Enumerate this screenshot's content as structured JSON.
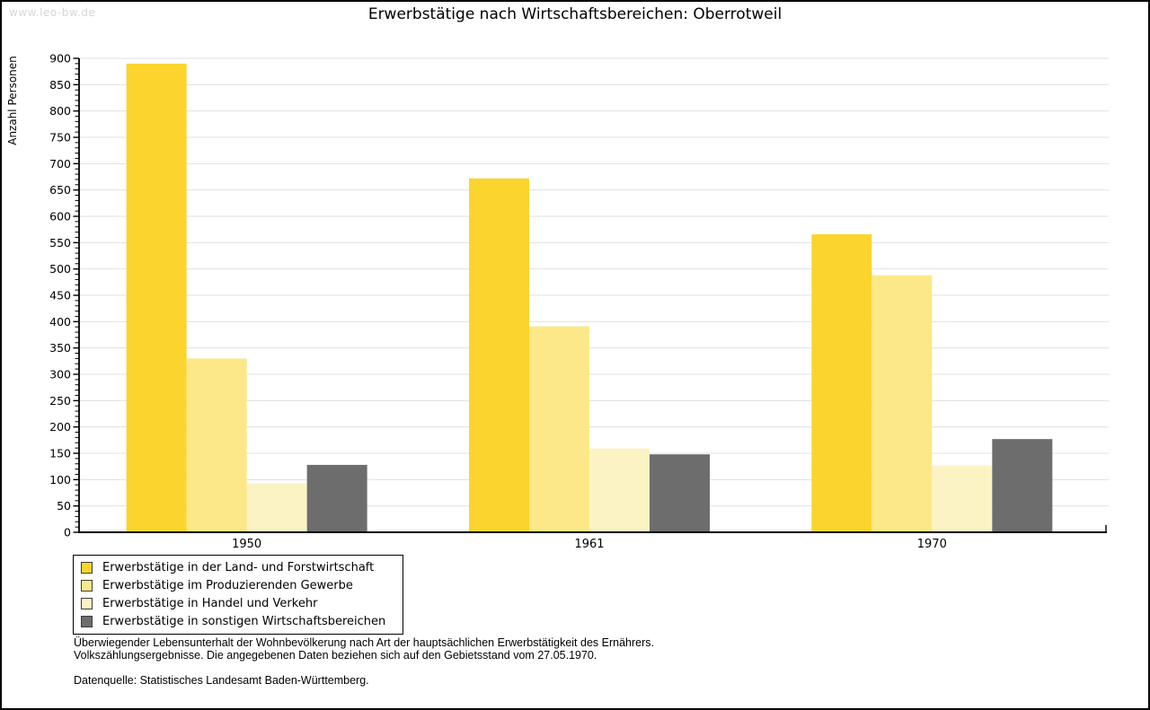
{
  "watermark": "www.leo-bw.de",
  "title": "Erwerbstätige nach Wirtschaftsbereichen: Oberrotweil",
  "chart_data": {
    "type": "bar",
    "title": "Erwerbstätige nach Wirtschaftsbereichen: Oberrotweil",
    "categories": [
      "1950",
      "1961",
      "1970"
    ],
    "series": [
      {
        "name": "Erwerbstätige in der Land- und Forstwirtschaft",
        "color": "#fcd42e",
        "values": [
          890,
          672,
          566
        ]
      },
      {
        "name": "Erwerbstätige im Produzierenden Gewerbe",
        "color": "#fce888",
        "values": [
          330,
          391,
          488
        ]
      },
      {
        "name": "Erwerbstätige in Handel und Verkehr",
        "color": "#fcf3c4",
        "values": [
          93,
          159,
          127
        ]
      },
      {
        "name": "Erwerbstätige in sonstigen Wirtschaftsbereichen",
        "color": "#6d6d6d",
        "values": [
          128,
          148,
          177
        ]
      }
    ],
    "xlabel": "",
    "ylabel": "Anzahl Personen",
    "ylim": [
      0,
      900
    ],
    "ytick_step": 50,
    "yminor_step": 10,
    "grid": "horizontal-major",
    "gridline_color": "#e0e0e0",
    "legend_position": "bottom-left"
  },
  "footnotes": {
    "line1": "Überwiegender Lebensunterhalt der Wohnbevölkerung nach Art der hauptsächlichen Erwerbstätigkeit des Ernährers.",
    "line2": "Volkszählungsergebnisse. Die angegebenen Daten beziehen sich auf den Gebietsstand vom 27.05.1970.",
    "source": "Datenquelle: Statistisches Landesamt Baden-Württemberg."
  }
}
